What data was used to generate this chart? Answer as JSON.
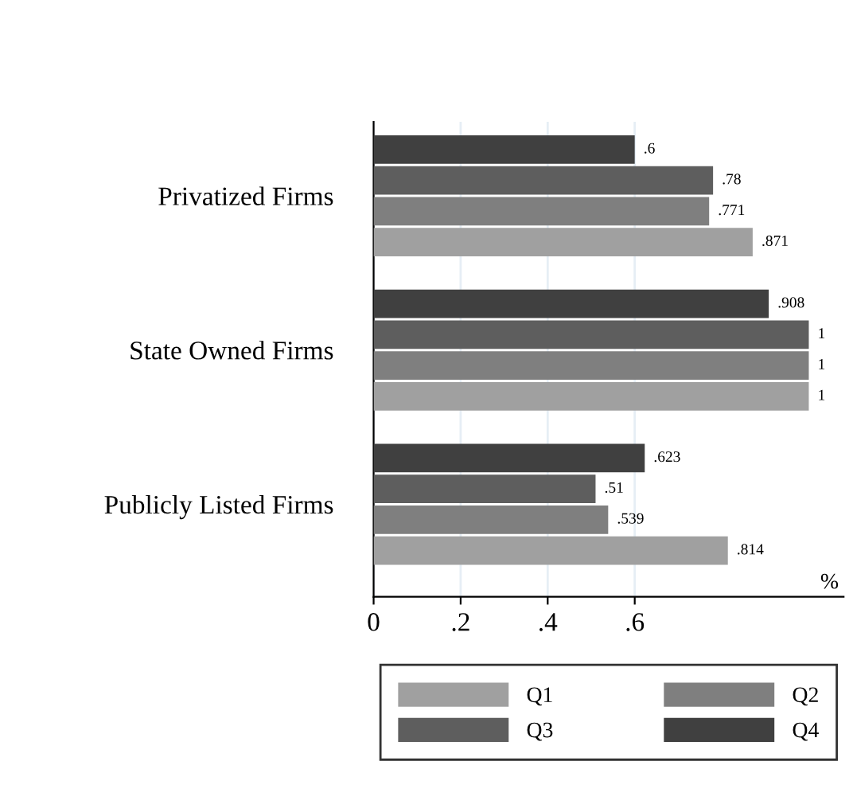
{
  "chart_data": {
    "type": "bar",
    "orientation": "horizontal",
    "categories": [
      "Privatized Firms",
      "State Owned Firms",
      "Publicly Listed Firms"
    ],
    "series": [
      {
        "name": "Q1",
        "color": "#a0a0a0",
        "values": [
          0.871,
          1,
          0.814
        ],
        "value_labels": [
          ".871",
          "1",
          ".814"
        ]
      },
      {
        "name": "Q2",
        "color": "#7f7f7f",
        "values": [
          0.771,
          1,
          0.539
        ],
        "value_labels": [
          ".771",
          "1",
          ".539"
        ]
      },
      {
        "name": "Q3",
        "color": "#5e5e5e",
        "values": [
          0.78,
          1,
          0.51
        ],
        "value_labels": [
          ".78",
          "1",
          ".51"
        ]
      },
      {
        "name": "Q4",
        "color": "#404040",
        "values": [
          0.6,
          0.908,
          0.623
        ],
        "value_labels": [
          ".6",
          ".908",
          ".623"
        ]
      }
    ],
    "xlabel": "%",
    "xlim": [
      0,
      1.08
    ],
    "xticks": [
      0,
      {
        "value": 0.2,
        "label": ".2"
      },
      {
        "value": 0.4,
        "label": ".4"
      },
      {
        "value": 0.6,
        "label": ".6"
      }
    ],
    "grid": "x",
    "legend": "bottom"
  }
}
